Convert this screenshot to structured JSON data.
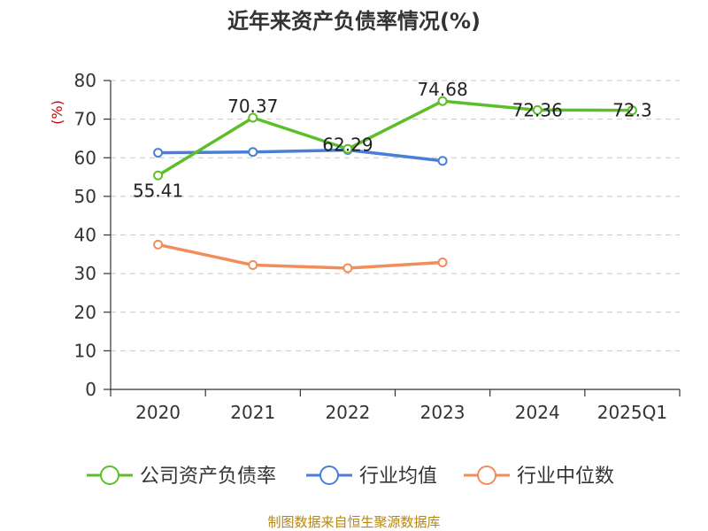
{
  "chart_data": {
    "type": "line",
    "title": "近年来资产负债率情况(%)",
    "ylabel": "(%)",
    "xlabel": "",
    "categories": [
      "2020",
      "2021",
      "2022",
      "2023",
      "2024",
      "2025Q1"
    ],
    "ylim": [
      0,
      80
    ],
    "yticks": [
      0,
      10,
      20,
      30,
      40,
      50,
      60,
      70,
      80
    ],
    "grid": "horizontal dashed",
    "legend_position": "bottom",
    "series": [
      {
        "name": "公司资产负债率",
        "color": "#5cbf2a",
        "values": [
          55.41,
          70.37,
          62.29,
          74.68,
          72.36,
          72.3
        ],
        "labels": [
          "55.41",
          "70.37",
          "62.29",
          "74.68",
          "72.36",
          "72.3"
        ]
      },
      {
        "name": "行业均值",
        "color": "#4a7fd9",
        "values": [
          61.3,
          61.5,
          62.0,
          59.2,
          null,
          null
        ]
      },
      {
        "name": "行业中位数",
        "color": "#f28c5a",
        "values": [
          37.5,
          32.2,
          31.4,
          32.9,
          null,
          null
        ]
      }
    ]
  },
  "source_text": "制图数据来自恒生聚源数据库"
}
